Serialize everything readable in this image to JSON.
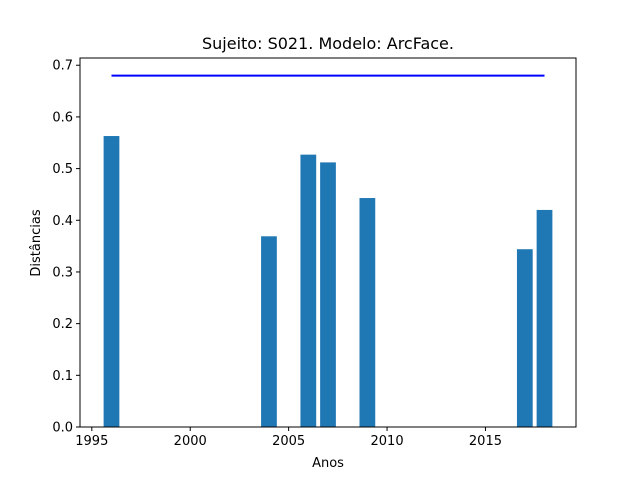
{
  "chart_data": {
    "type": "bar",
    "title": "Sujeito: S021. Modelo: ArcFace.",
    "xlabel": "Anos",
    "ylabel": "Distâncias",
    "xlim": [
      1994.4,
      2019.6
    ],
    "ylim": [
      0,
      0.714
    ],
    "x_ticks": [
      1995,
      2000,
      2005,
      2010,
      2015
    ],
    "y_ticks": [
      0.0,
      0.1,
      0.2,
      0.3,
      0.4,
      0.5,
      0.6,
      0.7
    ],
    "y_tick_labels": [
      "0.0",
      "0.1",
      "0.2",
      "0.3",
      "0.4",
      "0.5",
      "0.6",
      "0.7"
    ],
    "grid": false,
    "bar_color": "#1f77b4",
    "series": [
      {
        "type": "bar",
        "x": [
          1996,
          2004,
          2006,
          2007,
          2009,
          2017,
          2018
        ],
        "values": [
          0.563,
          0.369,
          0.527,
          0.512,
          0.443,
          0.344,
          0.42
        ]
      },
      {
        "type": "line",
        "color": "#0000ff",
        "x": [
          1996,
          2018
        ],
        "values": [
          0.68,
          0.68
        ]
      }
    ]
  }
}
